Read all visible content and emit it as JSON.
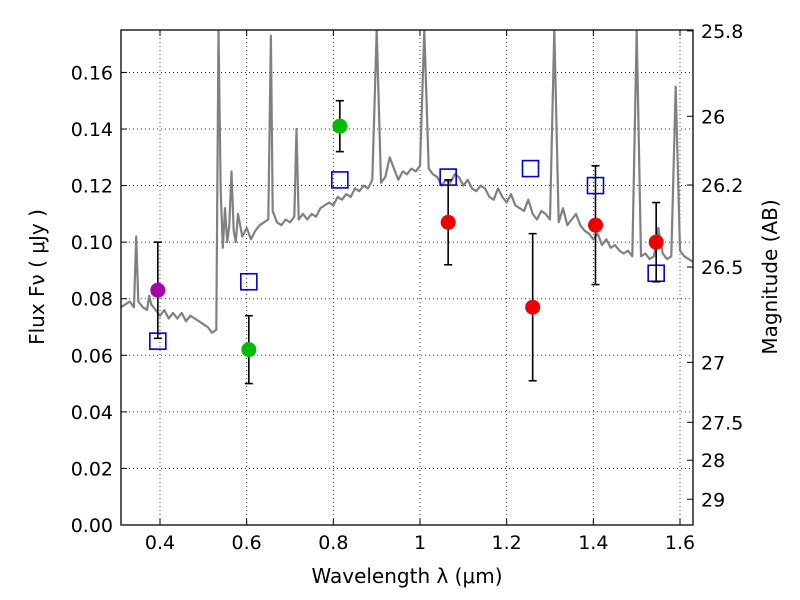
{
  "chart_data": {
    "type": "scatter",
    "title": "",
    "xlabel": "Wavelength  λ (μm)",
    "ylabel": "Flux  Fν  ( μJy )",
    "ylabel_right": "Magnitude (AB)",
    "xlim": [
      0.31,
      1.63
    ],
    "ylim": [
      0.0,
      0.175
    ],
    "grid": true,
    "x_ticks": [
      0.4,
      0.6,
      0.8,
      1.0,
      1.2,
      1.4,
      1.6
    ],
    "x_tick_labels": [
      "0.4",
      "0.6",
      "0.8",
      "1",
      "1.2",
      "1.4",
      "1.6"
    ],
    "y_ticks": [
      0.0,
      0.02,
      0.04,
      0.06,
      0.08,
      0.1,
      0.12,
      0.14,
      0.16
    ],
    "y_tick_labels": [
      "0.00",
      "0.02",
      "0.04",
      "0.06",
      "0.08",
      "0.10",
      "0.12",
      "0.14",
      "0.16"
    ],
    "right_ticks": [
      {
        "flux": 0.1747,
        "label": "25.8"
      },
      {
        "flux": 0.1445,
        "label": "26"
      },
      {
        "flux": 0.1202,
        "label": "26.2"
      },
      {
        "flux": 0.0912,
        "label": "26.5"
      },
      {
        "flux": 0.0575,
        "label": "27"
      },
      {
        "flux": 0.0363,
        "label": "27.5"
      },
      {
        "flux": 0.0229,
        "label": "28"
      },
      {
        "flux": 0.0091,
        "label": "29"
      }
    ],
    "series": [
      {
        "name": "model spectrum",
        "kind": "line",
        "color": "#808080",
        "x": [
          0.31,
          0.32,
          0.33,
          0.34,
          0.345,
          0.35,
          0.36,
          0.37,
          0.375,
          0.38,
          0.39,
          0.4,
          0.41,
          0.42,
          0.43,
          0.44,
          0.45,
          0.46,
          0.47,
          0.48,
          0.49,
          0.5,
          0.51,
          0.52,
          0.53,
          0.535,
          0.54,
          0.545,
          0.55,
          0.555,
          0.56,
          0.565,
          0.57,
          0.575,
          0.58,
          0.59,
          0.6,
          0.61,
          0.62,
          0.63,
          0.64,
          0.65,
          0.656,
          0.66,
          0.67,
          0.68,
          0.69,
          0.7,
          0.71,
          0.715,
          0.72,
          0.73,
          0.74,
          0.75,
          0.76,
          0.77,
          0.78,
          0.79,
          0.8,
          0.81,
          0.82,
          0.83,
          0.84,
          0.85,
          0.86,
          0.87,
          0.88,
          0.89,
          0.9,
          0.91,
          0.92,
          0.93,
          0.94,
          0.95,
          0.96,
          0.97,
          0.98,
          0.99,
          1.0,
          1.01,
          1.02,
          1.03,
          1.04,
          1.05,
          1.06,
          1.07,
          1.08,
          1.09,
          1.1,
          1.11,
          1.12,
          1.13,
          1.14,
          1.15,
          1.16,
          1.17,
          1.18,
          1.19,
          1.2,
          1.21,
          1.22,
          1.23,
          1.24,
          1.25,
          1.26,
          1.27,
          1.28,
          1.29,
          1.3,
          1.31,
          1.32,
          1.33,
          1.34,
          1.35,
          1.36,
          1.37,
          1.38,
          1.39,
          1.4,
          1.41,
          1.42,
          1.43,
          1.44,
          1.45,
          1.46,
          1.47,
          1.48,
          1.49,
          1.5,
          1.51,
          1.52,
          1.53,
          1.54,
          1.55,
          1.56,
          1.57,
          1.58,
          1.59,
          1.6,
          1.61,
          1.62,
          1.63
        ],
        "y": [
          0.077,
          0.078,
          0.079,
          0.077,
          0.102,
          0.079,
          0.077,
          0.076,
          0.081,
          0.078,
          0.076,
          0.074,
          0.076,
          0.073,
          0.075,
          0.073,
          0.075,
          0.072,
          0.074,
          0.073,
          0.072,
          0.071,
          0.07,
          0.068,
          0.069,
          0.175,
          0.118,
          0.098,
          0.112,
          0.1,
          0.106,
          0.125,
          0.104,
          0.1,
          0.11,
          0.102,
          0.105,
          0.101,
          0.104,
          0.106,
          0.107,
          0.108,
          0.173,
          0.111,
          0.107,
          0.106,
          0.108,
          0.107,
          0.109,
          0.14,
          0.108,
          0.11,
          0.108,
          0.11,
          0.109,
          0.112,
          0.113,
          0.114,
          0.113,
          0.116,
          0.115,
          0.117,
          0.116,
          0.119,
          0.118,
          0.12,
          0.119,
          0.122,
          0.175,
          0.121,
          0.123,
          0.13,
          0.126,
          0.122,
          0.125,
          0.124,
          0.126,
          0.125,
          0.127,
          0.175,
          0.126,
          0.124,
          0.123,
          0.12,
          0.122,
          0.121,
          0.124,
          0.123,
          0.12,
          0.122,
          0.119,
          0.118,
          0.12,
          0.119,
          0.116,
          0.115,
          0.119,
          0.116,
          0.114,
          0.117,
          0.113,
          0.112,
          0.111,
          0.115,
          0.11,
          0.108,
          0.111,
          0.11,
          0.108,
          0.175,
          0.107,
          0.112,
          0.106,
          0.108,
          0.11,
          0.106,
          0.104,
          0.103,
          0.101,
          0.103,
          0.099,
          0.101,
          0.098,
          0.099,
          0.097,
          0.096,
          0.097,
          0.095,
          0.175,
          0.095,
          0.096,
          0.094,
          0.095,
          0.105,
          0.096,
          0.094,
          0.095,
          0.155,
          0.097,
          0.095,
          0.094,
          0.093
        ]
      },
      {
        "name": "model photometry",
        "kind": "open-square",
        "color": "#0000cc",
        "x": [
          0.395,
          0.605,
          0.815,
          1.065,
          1.255,
          1.405,
          1.545
        ],
        "y": [
          0.065,
          0.086,
          0.122,
          0.123,
          0.126,
          0.12,
          0.089
        ]
      },
      {
        "name": "observed (violet)",
        "kind": "point-errorbar",
        "color": "#aa00aa",
        "x": [
          0.395
        ],
        "y": [
          0.083
        ],
        "err": [
          0.017
        ]
      },
      {
        "name": "observed (green)",
        "kind": "point-errorbar",
        "color": "#00bb00",
        "x": [
          0.605,
          0.815
        ],
        "y": [
          0.062,
          0.141
        ],
        "err": [
          0.012,
          0.009
        ]
      },
      {
        "name": "observed (red)",
        "kind": "point-errorbar",
        "color": "#ee0000",
        "x": [
          1.065,
          1.26,
          1.405,
          1.545
        ],
        "y": [
          0.107,
          0.077,
          0.106,
          0.1
        ],
        "err": [
          0.015,
          0.026,
          0.021,
          0.014
        ]
      }
    ]
  }
}
